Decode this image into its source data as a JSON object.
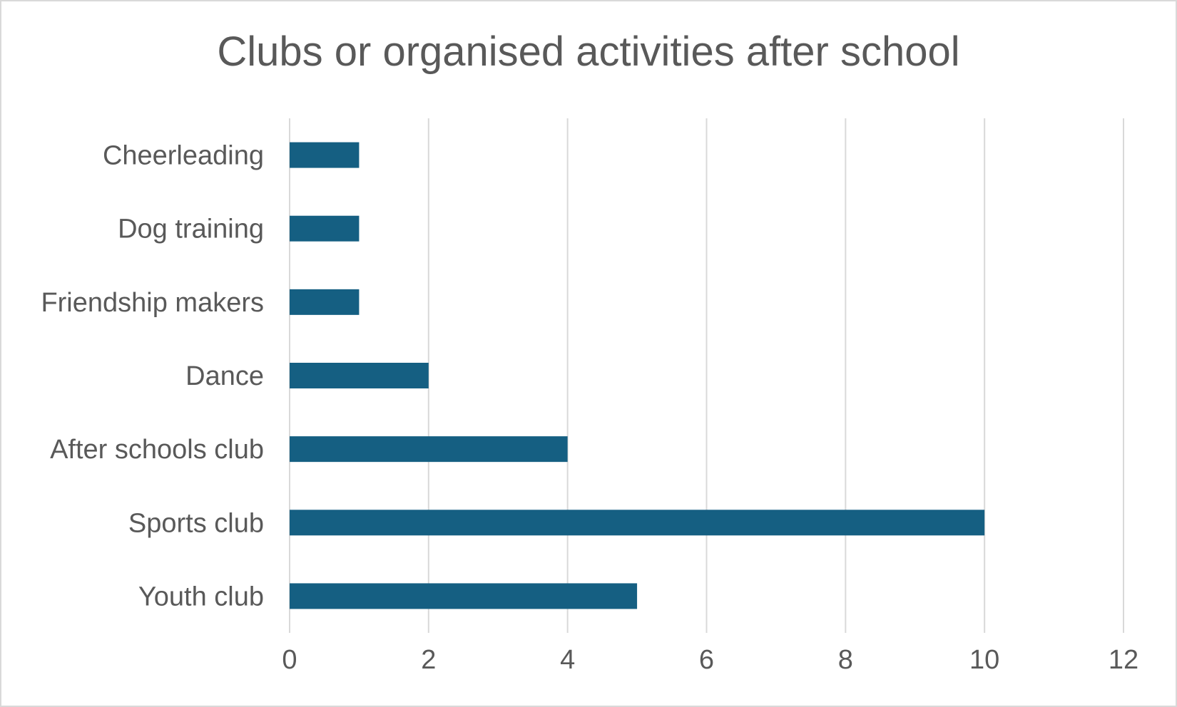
{
  "chart_data": {
    "type": "bar",
    "orientation": "horizontal",
    "title": "Clubs or organised activities after school",
    "categories": [
      "Cheerleading",
      "Dog training",
      "Friendship makers",
      "Dance",
      "After schools club",
      "Sports club",
      "Youth club"
    ],
    "values": [
      1,
      1,
      1,
      2,
      4,
      10,
      5
    ],
    "xlim": [
      0,
      12
    ],
    "xticks": [
      "0",
      "2",
      "4",
      "6",
      "8",
      "10",
      "12"
    ],
    "xlabel": "",
    "ylabel": "",
    "grid": true,
    "legend": "none",
    "bar_color": "#155f82"
  }
}
